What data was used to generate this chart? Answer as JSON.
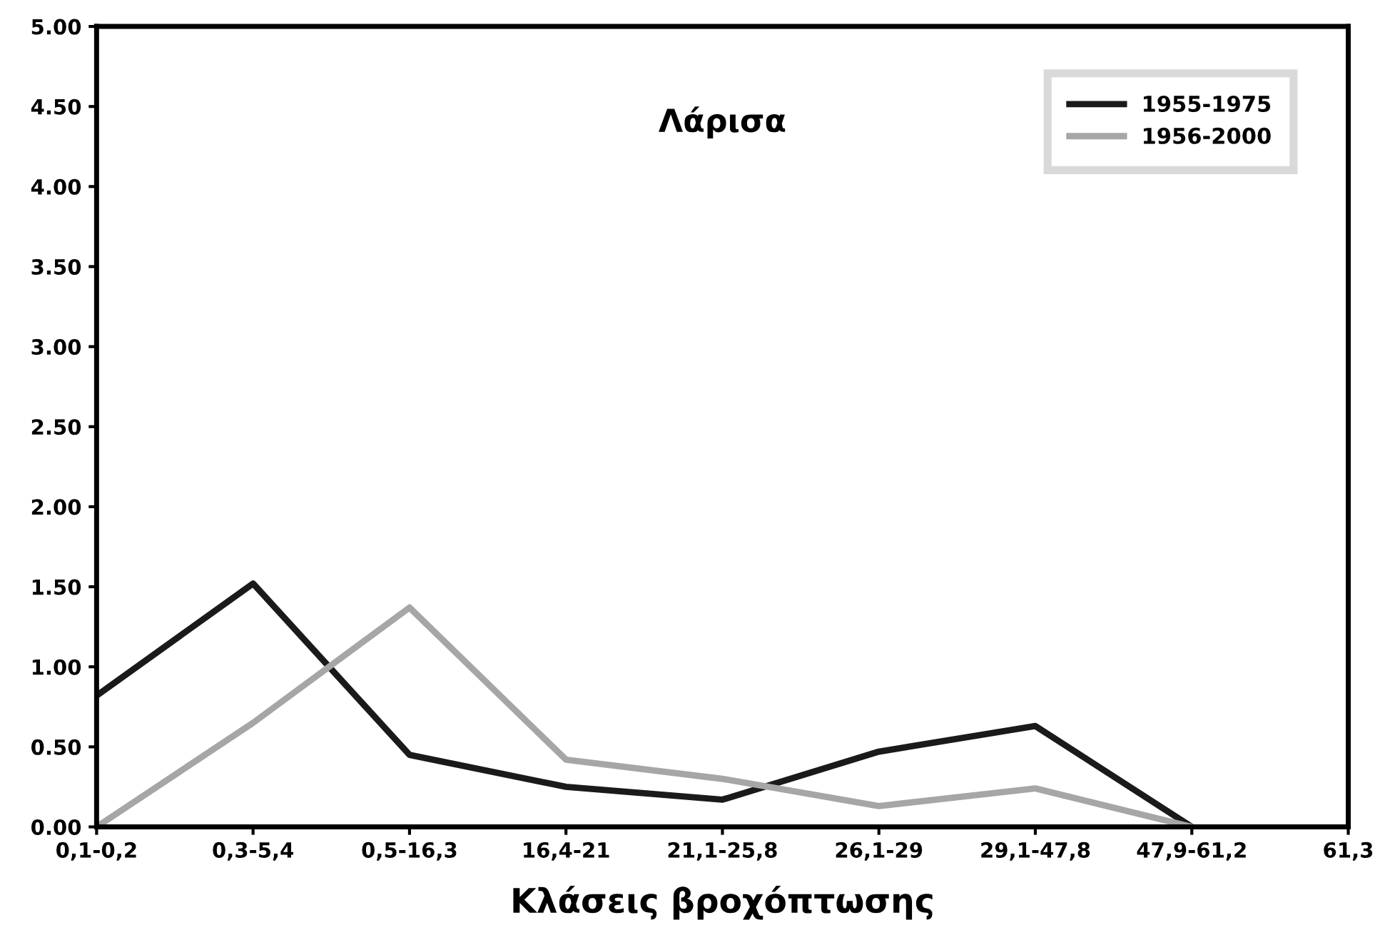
{
  "chart_data": {
    "type": "line",
    "title": "Λάρισα",
    "xlabel": "Κλάσεις βροχόπτωσης",
    "categories": [
      "0,1-0,2",
      "0,3-5,4",
      "0,5-16,3",
      "16,4-21",
      "21,1-25,8",
      "26,1-29",
      "29,1-47,8",
      "47,9-61,2",
      "61,3"
    ],
    "series": [
      {
        "name": "1955-1975",
        "color": "#1a1a1a",
        "values": [
          0.82,
          1.52,
          0.45,
          0.25,
          0.17,
          0.47,
          0.63,
          0.0,
          null
        ]
      },
      {
        "name": "1956-2000",
        "color": "#a6a6a6",
        "values": [
          0.0,
          0.65,
          1.37,
          0.42,
          0.3,
          0.13,
          0.24,
          0.0,
          null
        ]
      }
    ],
    "ylim": [
      0,
      5
    ],
    "yticks": [
      {
        "value": 0,
        "label": "0.00"
      },
      {
        "value": 0.5,
        "label": "0.50"
      },
      {
        "value": 1,
        "label": "1.00"
      },
      {
        "value": 1.5,
        "label": "1.50"
      },
      {
        "value": 2,
        "label": "2.00"
      },
      {
        "value": 2.5,
        "label": "2.50"
      },
      {
        "value": 3,
        "label": "3.00"
      },
      {
        "value": 3.5,
        "label": "3.50"
      },
      {
        "value": 4,
        "label": "4.00"
      },
      {
        "value": 4.5,
        "label": "4.50"
      },
      {
        "value": 5,
        "label": "5.00"
      }
    ],
    "grid": false,
    "legend": "top right",
    "marker": "none",
    "line_style": "solid"
  }
}
